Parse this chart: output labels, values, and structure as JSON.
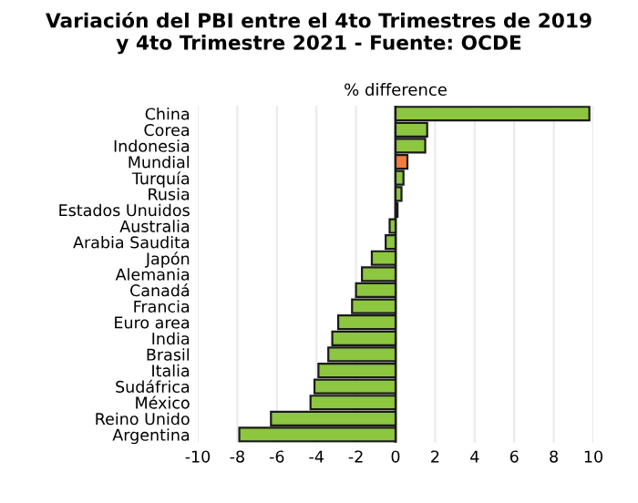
{
  "chart_data": {
    "type": "bar",
    "orientation": "horizontal",
    "title": "Variación del PBI entre el 4to Trimestres de 2019\ny 4to Trimestre 2021 - Fuente: OCDE",
    "xlabel": "% difference",
    "categories": [
      "China",
      "Corea",
      "Indonesia",
      "Mundial",
      "Turquía",
      "Rusia",
      "Estados Unuidos",
      "Australia",
      "Arabia Saudita",
      "Japón",
      "Alemania",
      "Canadá",
      "Francia",
      "Euro area",
      "India",
      "Brasil",
      "Italia",
      "Sudáfrica",
      "México",
      "Reino Unido",
      "Argentina"
    ],
    "values": [
      9.8,
      1.6,
      1.5,
      0.6,
      0.4,
      0.3,
      0.1,
      -0.3,
      -0.5,
      -1.2,
      -1.7,
      -2.0,
      -2.2,
      -2.9,
      -3.2,
      -3.4,
      -3.9,
      -4.1,
      -4.3,
      -6.3,
      -7.9
    ],
    "colors": [
      "#8dc63f",
      "#8dc63f",
      "#8dc63f",
      "#f47b3f",
      "#8dc63f",
      "#8dc63f",
      "#8dc63f",
      "#8dc63f",
      "#8dc63f",
      "#8dc63f",
      "#8dc63f",
      "#8dc63f",
      "#8dc63f",
      "#8dc63f",
      "#8dc63f",
      "#8dc63f",
      "#8dc63f",
      "#8dc63f",
      "#8dc63f",
      "#8dc63f",
      "#8dc63f"
    ],
    "xlim": [
      -10,
      10
    ],
    "xticks": [
      -10,
      -8,
      -6,
      -4,
      -2,
      0,
      2,
      4,
      6,
      8,
      10
    ],
    "grid": "x"
  }
}
